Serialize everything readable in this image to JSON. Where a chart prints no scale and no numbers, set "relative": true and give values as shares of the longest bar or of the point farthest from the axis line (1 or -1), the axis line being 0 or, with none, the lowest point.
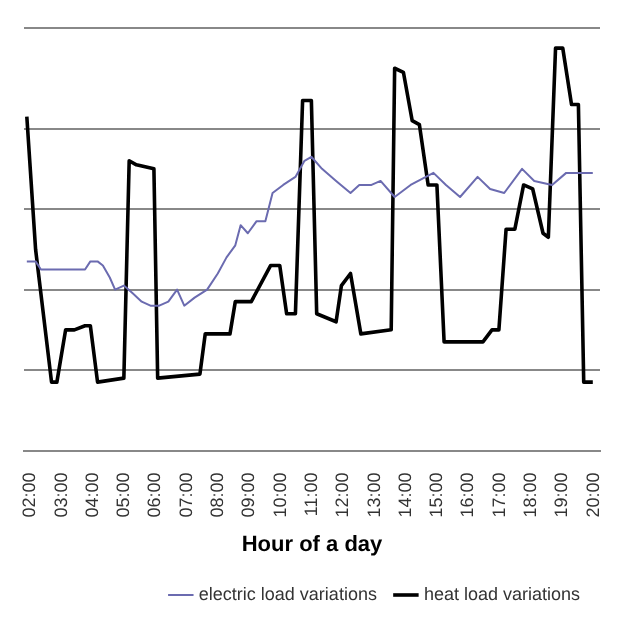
{
  "chart_data": {
    "type": "line",
    "relative": true,
    "xlabel": "Hour of a day",
    "xlim": [
      1.8,
      20.2
    ],
    "xticks": [
      {
        "value": 2,
        "label": "02:00"
      },
      {
        "value": 3,
        "label": "03:00"
      },
      {
        "value": 4,
        "label": "04:00"
      },
      {
        "value": 5,
        "label": "05:00"
      },
      {
        "value": 6,
        "label": "06:00"
      },
      {
        "value": 7,
        "label": "07:00"
      },
      {
        "value": 8,
        "label": "08:00"
      },
      {
        "value": 9,
        "label": "09:00"
      },
      {
        "value": 10,
        "label": "10:00"
      },
      {
        "value": 11,
        "label": "11:00"
      },
      {
        "value": 12,
        "label": "12:00"
      },
      {
        "value": 13,
        "label": "13:00"
      },
      {
        "value": 14,
        "label": "14:00"
      },
      {
        "value": 15,
        "label": "15:00"
      },
      {
        "value": 16,
        "label": "16:00"
      },
      {
        "value": 17,
        "label": "17:00"
      },
      {
        "value": 18,
        "label": "18:00"
      },
      {
        "value": 19,
        "label": "19:00"
      },
      {
        "value": 20,
        "label": "20:00"
      }
    ],
    "grid": "y",
    "legend": "bottom right",
    "marker": "none",
    "line_style": "solid",
    "series": [
      {
        "name": "electric load variations",
        "color": "#6b6bb0",
        "x": [
          1.89,
          2.17,
          2.34,
          2.73,
          3.3,
          3.75,
          3.92,
          4.15,
          4.32,
          4.54,
          4.71,
          4.99,
          5.28,
          5.56,
          5.84,
          6.12,
          6.41,
          6.69,
          6.92,
          7.25,
          7.65,
          7.99,
          8.27,
          8.55,
          8.72,
          8.95,
          9.23,
          9.51,
          9.74,
          10.08,
          10.47,
          10.76,
          10.98,
          11.32,
          11.77,
          12.23,
          12.51,
          12.9,
          13.19,
          13.64,
          14.15,
          14.88,
          15.28,
          15.73,
          16.29,
          16.69,
          17.14,
          17.71,
          18.1,
          18.67,
          19.12,
          19.68,
          19.97
        ],
        "values": [
          0.47,
          0.47,
          0.45,
          0.45,
          0.45,
          0.45,
          0.47,
          0.47,
          0.46,
          0.43,
          0.4,
          0.41,
          0.39,
          0.37,
          0.36,
          0.36,
          0.37,
          0.4,
          0.36,
          0.38,
          0.4,
          0.44,
          0.48,
          0.51,
          0.56,
          0.54,
          0.57,
          0.57,
          0.64,
          0.66,
          0.68,
          0.72,
          0.73,
          0.7,
          0.67,
          0.64,
          0.66,
          0.66,
          0.67,
          0.63,
          0.66,
          0.69,
          0.66,
          0.63,
          0.68,
          0.65,
          0.64,
          0.7,
          0.67,
          0.66,
          0.69,
          0.69,
          0.69
        ]
      },
      {
        "name": "heat load variations",
        "color": "#000000",
        "x": [
          1.89,
          2.17,
          2.68,
          2.85,
          3.13,
          3.41,
          3.75,
          3.92,
          4.15,
          4.99,
          5.16,
          5.39,
          5.95,
          6.07,
          7.42,
          7.59,
          8.38,
          8.55,
          9.06,
          9.68,
          9.97,
          10.19,
          10.47,
          10.7,
          10.98,
          11.15,
          11.77,
          11.94,
          12.23,
          12.56,
          13.53,
          13.64,
          13.92,
          14.2,
          14.43,
          14.71,
          14.99,
          15.22,
          16.46,
          16.75,
          16.97,
          17.2,
          17.48,
          17.76,
          18.05,
          18.38,
          18.55,
          18.78,
          19.01,
          19.29,
          19.51,
          19.68,
          19.97
        ],
        "values": [
          0.83,
          0.5,
          0.17,
          0.17,
          0.3,
          0.3,
          0.31,
          0.31,
          0.17,
          0.18,
          0.72,
          0.71,
          0.7,
          0.18,
          0.19,
          0.29,
          0.29,
          0.37,
          0.37,
          0.46,
          0.46,
          0.34,
          0.34,
          0.87,
          0.87,
          0.34,
          0.32,
          0.41,
          0.44,
          0.29,
          0.3,
          0.95,
          0.94,
          0.82,
          0.81,
          0.66,
          0.66,
          0.27,
          0.27,
          0.3,
          0.3,
          0.55,
          0.55,
          0.66,
          0.65,
          0.54,
          0.53,
          1,
          1,
          0.86,
          0.86,
          0.17,
          0.17
        ]
      }
    ]
  }
}
